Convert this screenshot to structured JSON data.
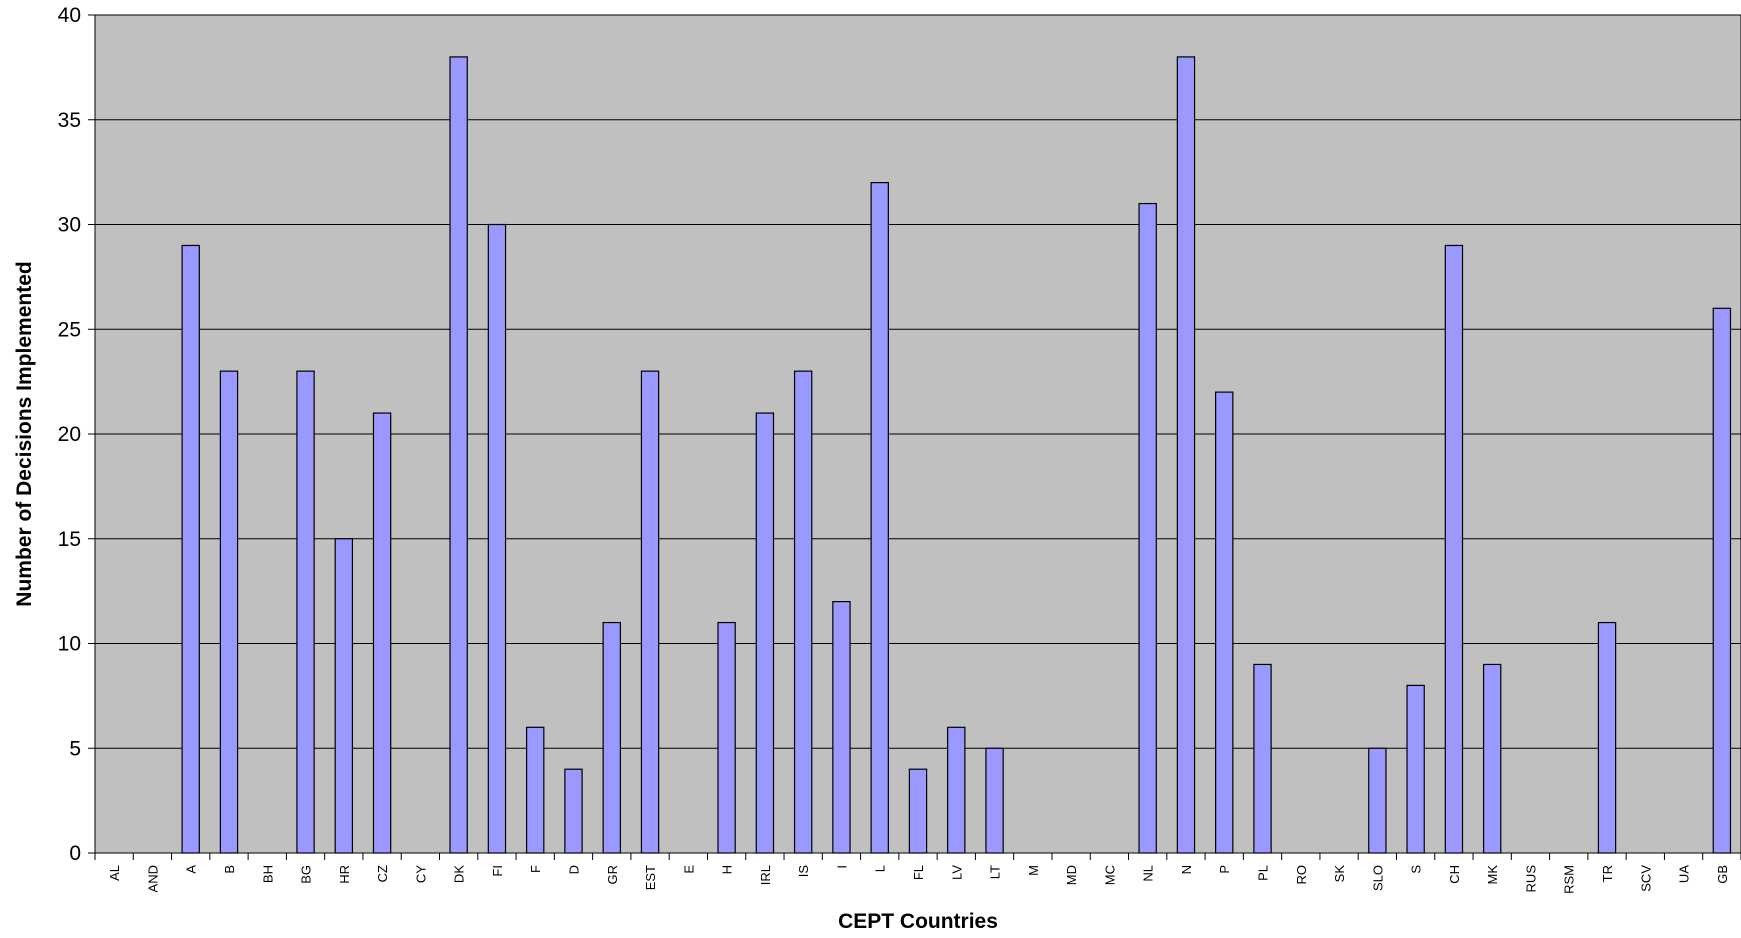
{
  "chart_data": {
    "type": "bar",
    "title": "",
    "xlabel": "CEPT Countries",
    "ylabel": "Number of Decisions Implemented",
    "ylim": [
      0,
      40
    ],
    "yticks": [
      0,
      5,
      10,
      15,
      20,
      25,
      30,
      35,
      40
    ],
    "grid": true,
    "legend": "none",
    "categories": [
      "AL",
      "AND",
      "A",
      "B",
      "BH",
      "BG",
      "HR",
      "CZ",
      "CY",
      "DK",
      "FI",
      "F",
      "D",
      "GR",
      "EST",
      "E",
      "H",
      "IRL",
      "IS",
      "I",
      "L",
      "FL",
      "LV",
      "LT",
      "M",
      "MD",
      "MC",
      "NL",
      "N",
      "P",
      "PL",
      "RO",
      "SK",
      "SLO",
      "S",
      "CH",
      "MK",
      "RUS",
      "RSM",
      "TR",
      "SCV",
      "UA",
      "GB"
    ],
    "series": [
      {
        "values": [
          0,
          0,
          29,
          23,
          0,
          23,
          15,
          21,
          0,
          38,
          30,
          6,
          4,
          11,
          23,
          0,
          11,
          21,
          23,
          12,
          32,
          4,
          6,
          5,
          0,
          0,
          0,
          31,
          38,
          22,
          9,
          0,
          0,
          5,
          8,
          29,
          9,
          0,
          0,
          11,
          0,
          0,
          26
        ]
      }
    ],
    "colors": {
      "bar_fill": "#9999ff",
      "bar_stroke": "#000000",
      "plot_background": "#c0c0c0",
      "gridline": "#000000"
    }
  }
}
